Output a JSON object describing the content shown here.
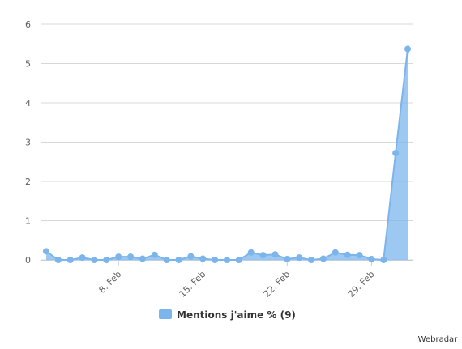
{
  "chart_data": {
    "type": "area",
    "categories": [
      null,
      null,
      null,
      null,
      null,
      null,
      "8. Feb",
      null,
      null,
      null,
      null,
      null,
      null,
      "15. Feb",
      null,
      null,
      null,
      null,
      null,
      null,
      "22. Feb",
      null,
      null,
      null,
      null,
      null,
      null,
      "29. Feb",
      null,
      null,
      null
    ],
    "series": [
      {
        "name": "Mentions j'aime % (9)",
        "color": "#7cb5ec",
        "values": [
          0.22,
          0,
          0,
          0.06,
          0,
          0,
          0.08,
          0.08,
          0.03,
          0.13,
          0,
          0,
          0.09,
          0.03,
          0,
          0,
          0,
          0.19,
          0.12,
          0.14,
          0.02,
          0.06,
          0,
          0.03,
          0.19,
          0.13,
          0.12,
          0.02,
          0,
          2.72,
          5.37
        ]
      }
    ],
    "ylim": [
      0,
      6
    ],
    "yticks": [
      0,
      1,
      2,
      3,
      4,
      5,
      6
    ],
    "grid": true,
    "credit": "Webradar"
  }
}
